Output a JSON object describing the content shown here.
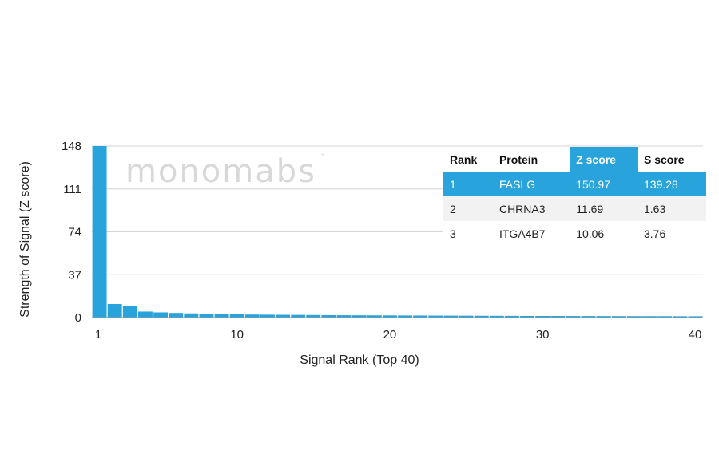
{
  "watermark": {
    "text": "monomabs",
    "tm": "™"
  },
  "chart_data": {
    "type": "bar",
    "xlabel": "Signal Rank (Top 40)",
    "ylabel": "Strength of Signal (Z score)",
    "ylim": [
      0,
      148
    ],
    "y_ticks": [
      0,
      37,
      74,
      111,
      148
    ],
    "x_ticks": [
      1,
      10,
      20,
      30,
      40
    ],
    "grid": true,
    "bar_color": "#29a3dc",
    "x": [
      1,
      2,
      3,
      4,
      5,
      6,
      7,
      8,
      9,
      10,
      11,
      12,
      13,
      14,
      15,
      16,
      17,
      18,
      19,
      20,
      21,
      22,
      23,
      24,
      25,
      26,
      27,
      28,
      29,
      30,
      31,
      32,
      33,
      34,
      35,
      36,
      37,
      38,
      39,
      40
    ],
    "values": [
      150.97,
      11.69,
      10.06,
      5.2,
      4.5,
      4.0,
      3.6,
      3.3,
      3.0,
      2.8,
      2.6,
      2.5,
      2.4,
      2.3,
      2.2,
      2.1,
      2.0,
      1.95,
      1.9,
      1.85,
      1.8,
      1.75,
      1.7,
      1.65,
      1.6,
      1.55,
      1.5,
      1.45,
      1.4,
      1.38,
      1.35,
      1.32,
      1.3,
      1.28,
      1.25,
      1.22,
      1.2,
      1.18,
      1.15,
      1.12
    ]
  },
  "table": {
    "headers": [
      "Rank",
      "Protein",
      "Z score",
      "S score"
    ],
    "highlight_color": "#29a3dc",
    "rows": [
      [
        "1",
        "FASLG",
        "150.97",
        "139.28"
      ],
      [
        "2",
        "CHRNA3",
        "11.69",
        "1.63"
      ],
      [
        "3",
        "ITGA4B7",
        "10.06",
        "3.76"
      ]
    ]
  }
}
